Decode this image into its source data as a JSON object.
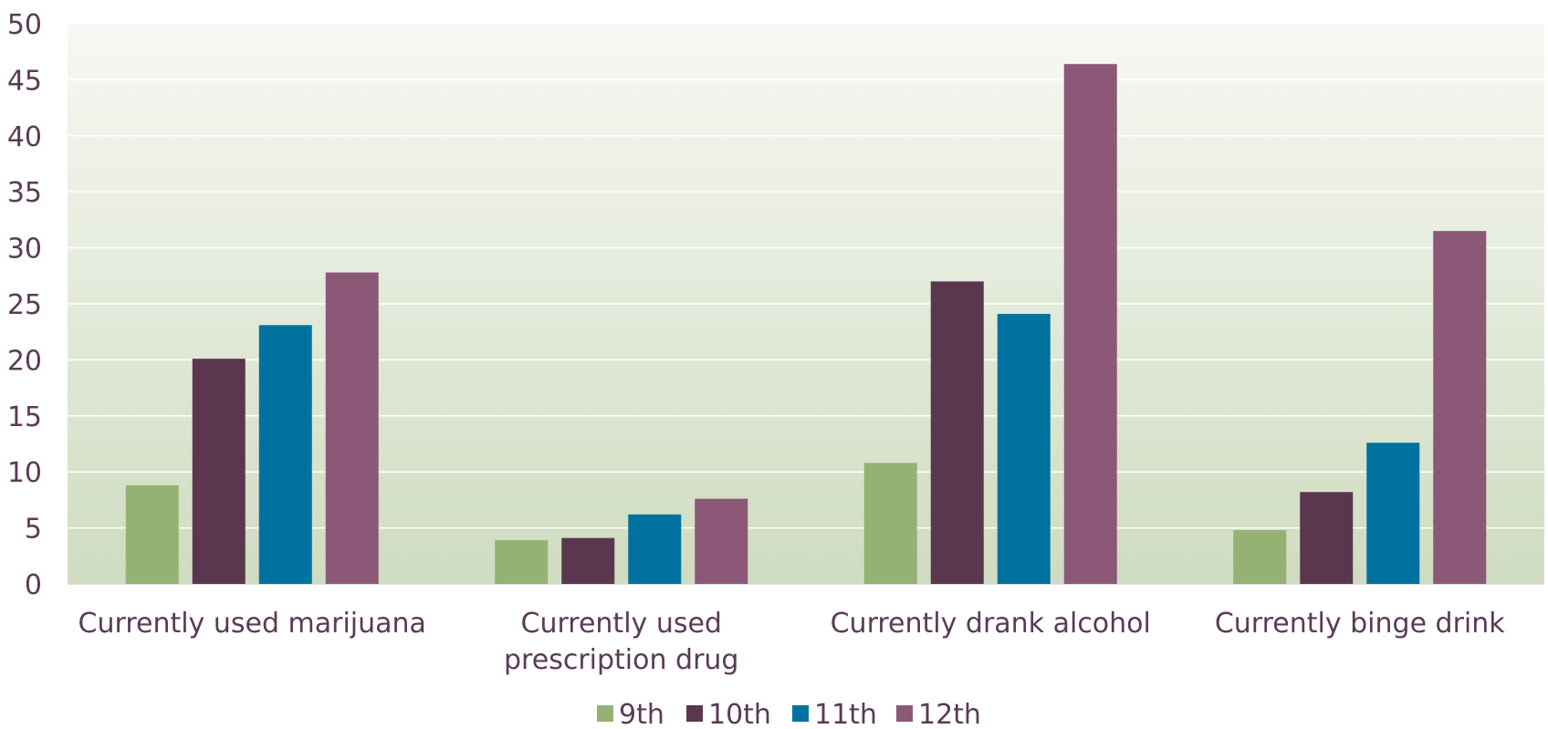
{
  "chart_data": {
    "type": "bar",
    "title": "",
    "xlabel": "",
    "ylabel": "",
    "ylim": [
      0,
      50
    ],
    "yticks": [
      0,
      5,
      10,
      15,
      20,
      25,
      30,
      35,
      40,
      45,
      50
    ],
    "grid": true,
    "legend": "bottom",
    "categories": [
      [
        "Currently used marijuana"
      ],
      [
        "Currently used",
        "prescription drug"
      ],
      [
        "Currently drank alcohol"
      ],
      [
        "Currently binge drink"
      ]
    ],
    "series": [
      {
        "name": "9th",
        "color": "#93b274",
        "values": [
          8.8,
          3.9,
          10.8,
          4.8
        ]
      },
      {
        "name": "10th",
        "color": "#5b364f",
        "values": [
          20.1,
          4.1,
          27.0,
          8.2
        ]
      },
      {
        "name": "11th",
        "color": "#0072a0",
        "values": [
          23.1,
          6.2,
          24.1,
          12.6
        ]
      },
      {
        "name": "12th",
        "color": "#8b5878",
        "values": [
          27.8,
          7.6,
          46.4,
          31.5
        ]
      }
    ]
  }
}
